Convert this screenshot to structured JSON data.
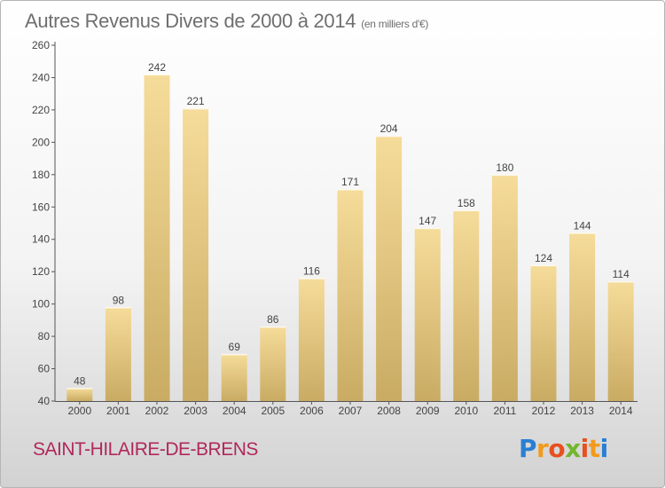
{
  "chart_data": {
    "type": "bar",
    "title": "Autres Revenus Divers de 2000 à 2014",
    "subtitle": "(en milliers d'€)",
    "categories": [
      "2000",
      "2001",
      "2002",
      "2003",
      "2004",
      "2005",
      "2006",
      "2007",
      "2008",
      "2009",
      "2010",
      "2011",
      "2012",
      "2013",
      "2014"
    ],
    "values": [
      48,
      98,
      242,
      221,
      69,
      86,
      116,
      171,
      204,
      147,
      158,
      180,
      124,
      144,
      114
    ],
    "yticks": [
      "40",
      "60",
      "80",
      "100",
      "120",
      "140",
      "160",
      "180",
      "200",
      "220",
      "240",
      "260"
    ],
    "ylim": [
      40,
      260
    ],
    "grid": false,
    "bar_color": "#e2c47c"
  },
  "commune": "SAINT-HILAIRE-DE-BRENS",
  "logo": {
    "letters": [
      "P",
      "r",
      "o",
      "x",
      "i",
      "t",
      "i"
    ],
    "colors": [
      "#2a7fd4",
      "#f29a1d",
      "#e8501e",
      "#74b62e",
      "#e8501e",
      "#f29a1d",
      "#2a7fd4"
    ]
  }
}
